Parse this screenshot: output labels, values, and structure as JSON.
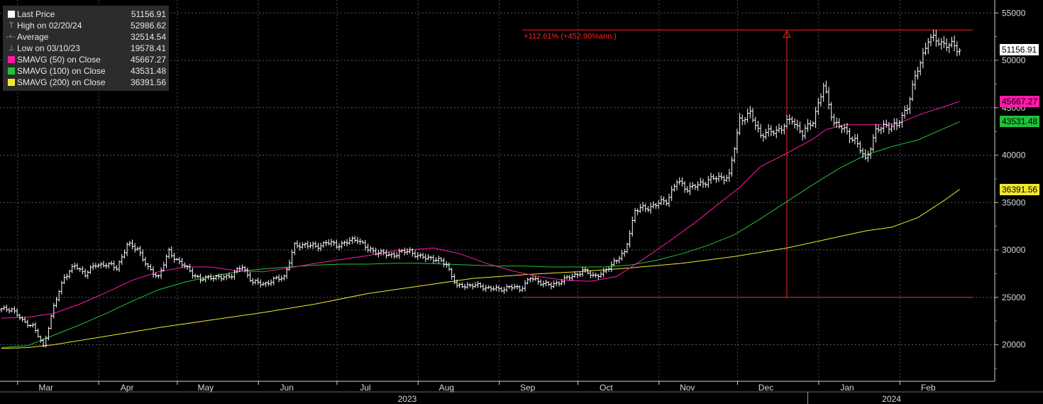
{
  "legend": {
    "items": [
      {
        "label": "Last Price",
        "value": "51156.91",
        "symbol": "box",
        "color": "#ffffff"
      },
      {
        "label": "High on 02/20/24",
        "value": "52986.62",
        "symbol": "T",
        "color": "#9a9a9a"
      },
      {
        "label": "Average",
        "value": "32514.54",
        "symbol": "-+-",
        "color": "#9a9a9a"
      },
      {
        "label": "Low on 03/10/23",
        "value": "19578.41",
        "symbol": "⊥",
        "color": "#9a9a9a"
      },
      {
        "label": "SMAVG (50)  on Close",
        "value": "45667.27",
        "symbol": "box",
        "color": "#ff1aa8"
      },
      {
        "label": "SMAVG (100)  on Close",
        "value": "43531.48",
        "symbol": "box",
        "color": "#1fc23a"
      },
      {
        "label": "SMAVG (200)  on Close",
        "value": "36391.56",
        "symbol": "box",
        "color": "#f2e830"
      }
    ]
  },
  "price_tags": [
    {
      "text": "51156.91",
      "value": 51156.91,
      "bg": "#ffffff",
      "fg": "#000000"
    },
    {
      "text": "45667.27",
      "value": 45667.27,
      "bg": "#ff1aa8",
      "fg": "#000000"
    },
    {
      "text": "43531.48",
      "value": 43531.48,
      "bg": "#1fc23a",
      "fg": "#000000"
    },
    {
      "text": "36391.56",
      "value": 36391.56,
      "bg": "#f2e830",
      "fg": "#000000"
    }
  ],
  "annotation": {
    "text": "+112.61% (+452.90%ann.)",
    "color": "#ff2020",
    "from_value": 25000,
    "to_value": 53200,
    "start_day": 199,
    "end_day": 371,
    "arrow_day": 300
  },
  "chart_data": {
    "type": "line",
    "title": "",
    "ylabel": "",
    "ylim": [
      16500,
      56000
    ],
    "y_ticks": [
      20000,
      25000,
      30000,
      35000,
      40000,
      45000,
      50000,
      55000
    ],
    "y_tick_labels": [
      "20000",
      "25000",
      "30000",
      "35000",
      "40000",
      "45000",
      "50000",
      "55000"
    ],
    "x_axis": {
      "unit": "days after 2023-02-10",
      "xlim": [
        0,
        380
      ],
      "months": [
        {
          "label": "Mar",
          "day": 17
        },
        {
          "label": "Apr",
          "day": 48
        },
        {
          "label": "May",
          "day": 78
        },
        {
          "label": "Jun",
          "day": 109
        },
        {
          "label": "Jul",
          "day": 139
        },
        {
          "label": "Aug",
          "day": 170
        },
        {
          "label": "Sep",
          "day": 201
        },
        {
          "label": "Oct",
          "day": 231
        },
        {
          "label": "Nov",
          "day": 262
        },
        {
          "label": "Dec",
          "day": 292
        },
        {
          "label": "Jan",
          "day": 323
        },
        {
          "label": "Feb",
          "day": 354
        }
      ],
      "years": [
        {
          "label": "2023",
          "day": 155
        },
        {
          "label": "2024",
          "day": 340
        }
      ],
      "year_divider_day": 308
    },
    "series": [
      {
        "name": "Last Price",
        "color": "#ffffff",
        "style": "bars",
        "points": [
          [
            0,
            23700
          ],
          [
            4,
            23800
          ],
          [
            8,
            22500
          ],
          [
            12,
            22000
          ],
          [
            16,
            19800
          ],
          [
            20,
            24000
          ],
          [
            24,
            27200
          ],
          [
            28,
            28300
          ],
          [
            32,
            27500
          ],
          [
            36,
            28400
          ],
          [
            40,
            28500
          ],
          [
            44,
            28100
          ],
          [
            48,
            30500
          ],
          [
            52,
            30200
          ],
          [
            56,
            28000
          ],
          [
            60,
            27200
          ],
          [
            64,
            29800
          ],
          [
            68,
            28700
          ],
          [
            72,
            27800
          ],
          [
            76,
            26800
          ],
          [
            80,
            27200
          ],
          [
            84,
            27000
          ],
          [
            88,
            27400
          ],
          [
            92,
            28200
          ],
          [
            96,
            26600
          ],
          [
            100,
            26400
          ],
          [
            104,
            26800
          ],
          [
            108,
            27200
          ],
          [
            112,
            30400
          ],
          [
            116,
            30600
          ],
          [
            120,
            30300
          ],
          [
            124,
            30800
          ],
          [
            128,
            30500
          ],
          [
            132,
            30800
          ],
          [
            136,
            31200
          ],
          [
            140,
            30000
          ],
          [
            144,
            29800
          ],
          [
            148,
            29400
          ],
          [
            152,
            29700
          ],
          [
            156,
            29900
          ],
          [
            160,
            29200
          ],
          [
            164,
            29200
          ],
          [
            170,
            28500
          ],
          [
            174,
            26100
          ],
          [
            178,
            26300
          ],
          [
            182,
            26200
          ],
          [
            186,
            26000
          ],
          [
            190,
            25800
          ],
          [
            194,
            26100
          ],
          [
            198,
            25900
          ],
          [
            202,
            27000
          ],
          [
            206,
            26600
          ],
          [
            210,
            26200
          ],
          [
            214,
            26800
          ],
          [
            218,
            27200
          ],
          [
            222,
            27800
          ],
          [
            226,
            27300
          ],
          [
            230,
            27500
          ],
          [
            234,
            28800
          ],
          [
            238,
            29600
          ],
          [
            242,
            34200
          ],
          [
            246,
            34400
          ],
          [
            250,
            34800
          ],
          [
            254,
            35200
          ],
          [
            258,
            37200
          ],
          [
            262,
            36500
          ],
          [
            266,
            36800
          ],
          [
            270,
            37400
          ],
          [
            274,
            37600
          ],
          [
            278,
            37800
          ],
          [
            282,
            43800
          ],
          [
            286,
            44300
          ],
          [
            290,
            42200
          ],
          [
            294,
            42400
          ],
          [
            298,
            42900
          ],
          [
            302,
            43800
          ],
          [
            306,
            42200
          ],
          [
            310,
            43700
          ],
          [
            314,
            47200
          ],
          [
            318,
            43500
          ],
          [
            322,
            42600
          ],
          [
            326,
            41600
          ],
          [
            330,
            39500
          ],
          [
            334,
            42500
          ],
          [
            338,
            43200
          ],
          [
            342,
            43000
          ],
          [
            346,
            45200
          ],
          [
            350,
            49000
          ],
          [
            354,
            52300
          ],
          [
            358,
            52000
          ],
          [
            362,
            51600
          ],
          [
            366,
            51157
          ]
        ]
      },
      {
        "name": "SMAVG (50)  on Close",
        "color": "#ff1aa8",
        "style": "line",
        "points": [
          [
            0,
            22800
          ],
          [
            10,
            22900
          ],
          [
            20,
            23300
          ],
          [
            30,
            24300
          ],
          [
            40,
            25500
          ],
          [
            50,
            26800
          ],
          [
            60,
            27700
          ],
          [
            70,
            28200
          ],
          [
            80,
            28200
          ],
          [
            90,
            27800
          ],
          [
            100,
            27700
          ],
          [
            110,
            28100
          ],
          [
            120,
            28600
          ],
          [
            130,
            29000
          ],
          [
            140,
            29400
          ],
          [
            150,
            29900
          ],
          [
            160,
            30100
          ],
          [
            165,
            30200
          ],
          [
            175,
            29600
          ],
          [
            185,
            28600
          ],
          [
            195,
            27800
          ],
          [
            205,
            27200
          ],
          [
            215,
            26800
          ],
          [
            225,
            26700
          ],
          [
            235,
            27200
          ],
          [
            245,
            29000
          ],
          [
            255,
            30900
          ],
          [
            265,
            32900
          ],
          [
            275,
            35100
          ],
          [
            282,
            36600
          ],
          [
            290,
            38800
          ],
          [
            300,
            40200
          ],
          [
            310,
            41700
          ],
          [
            315,
            42700
          ],
          [
            322,
            43200
          ],
          [
            332,
            43200
          ],
          [
            342,
            43300
          ],
          [
            352,
            44400
          ],
          [
            360,
            45100
          ],
          [
            366,
            45667
          ]
        ]
      },
      {
        "name": "SMAVG (100)  on Close",
        "color": "#1fc23a",
        "style": "line",
        "points": [
          [
            0,
            19700
          ],
          [
            10,
            19900
          ],
          [
            20,
            21000
          ],
          [
            30,
            22100
          ],
          [
            40,
            23300
          ],
          [
            50,
            24600
          ],
          [
            60,
            25800
          ],
          [
            70,
            26600
          ],
          [
            80,
            27200
          ],
          [
            90,
            27700
          ],
          [
            100,
            28000
          ],
          [
            110,
            28200
          ],
          [
            120,
            28400
          ],
          [
            130,
            28500
          ],
          [
            140,
            28500
          ],
          [
            150,
            28600
          ],
          [
            160,
            28600
          ],
          [
            170,
            28500
          ],
          [
            180,
            28400
          ],
          [
            190,
            28300
          ],
          [
            200,
            28300
          ],
          [
            210,
            28200
          ],
          [
            220,
            28200
          ],
          [
            230,
            28200
          ],
          [
            240,
            28400
          ],
          [
            250,
            28900
          ],
          [
            260,
            29600
          ],
          [
            270,
            30500
          ],
          [
            280,
            31600
          ],
          [
            290,
            33300
          ],
          [
            300,
            35100
          ],
          [
            310,
            36900
          ],
          [
            320,
            38600
          ],
          [
            330,
            40000
          ],
          [
            340,
            40900
          ],
          [
            350,
            41600
          ],
          [
            360,
            42800
          ],
          [
            366,
            43531
          ]
        ]
      },
      {
        "name": "SMAVG (200)  on Close",
        "color": "#f2e830",
        "style": "line",
        "points": [
          [
            0,
            19600
          ],
          [
            10,
            19700
          ],
          [
            20,
            20000
          ],
          [
            40,
            20900
          ],
          [
            60,
            21800
          ],
          [
            80,
            22600
          ],
          [
            100,
            23400
          ],
          [
            120,
            24300
          ],
          [
            140,
            25400
          ],
          [
            160,
            26200
          ],
          [
            180,
            27000
          ],
          [
            200,
            27400
          ],
          [
            220,
            27700
          ],
          [
            240,
            28100
          ],
          [
            260,
            28600
          ],
          [
            280,
            29300
          ],
          [
            300,
            30200
          ],
          [
            310,
            30800
          ],
          [
            320,
            31400
          ],
          [
            330,
            32000
          ],
          [
            340,
            32400
          ],
          [
            350,
            33400
          ],
          [
            360,
            35200
          ],
          [
            366,
            36392
          ]
        ]
      }
    ]
  }
}
